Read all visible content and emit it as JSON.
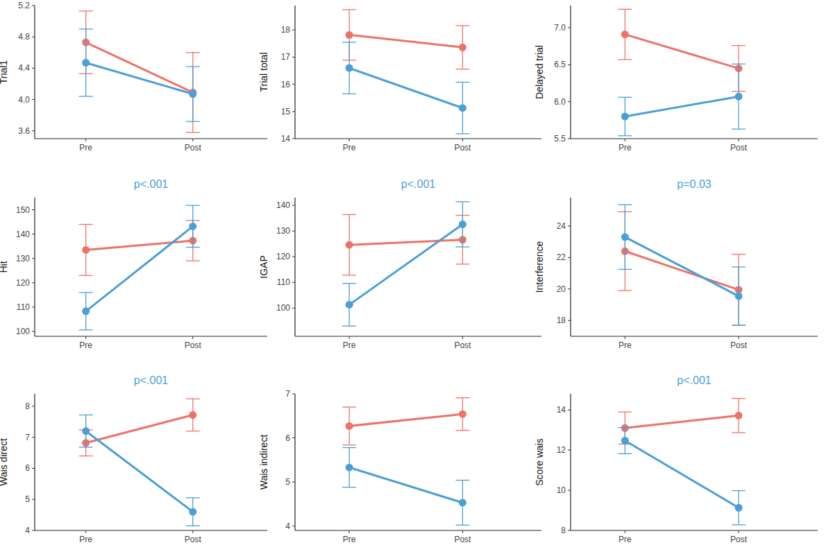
{
  "chart_data": [
    {
      "type": "line",
      "y_label": "Trial1",
      "categories": [
        "Pre",
        "Post"
      ],
      "ylim": [
        3.5,
        5.2
      ],
      "yticks": [
        {
          "value": 3.6,
          "label": "3.6"
        },
        {
          "value": 4.0,
          "label": "4.0"
        },
        {
          "value": 4.4,
          "label": "4.4"
        },
        {
          "value": 4.8,
          "label": "4.8"
        },
        {
          "value": 5.2,
          "label": "5.2"
        }
      ],
      "series": [
        {
          "color": "#ED7268",
          "values": [
            4.73,
            4.09
          ],
          "errors": [
            0.4,
            0.51
          ]
        },
        {
          "color": "#4A9FD7",
          "values": [
            4.47,
            4.07
          ],
          "errors": [
            0.43,
            0.35
          ]
        }
      ]
    },
    {
      "type": "line",
      "y_label": "Trial total",
      "categories": [
        "Pre",
        "Post"
      ],
      "ylim": [
        14,
        18.9
      ],
      "yticks": [
        14,
        15,
        16,
        17,
        18
      ],
      "series": [
        {
          "color": "#ED7268",
          "values": [
            17.82,
            17.36
          ],
          "errors": [
            0.93,
            0.8
          ]
        },
        {
          "color": "#4A9FD7",
          "values": [
            16.6,
            15.13
          ],
          "errors": [
            0.95,
            0.95
          ]
        }
      ]
    },
    {
      "type": "line",
      "y_label": "Delayed trial",
      "categories": [
        "Pre",
        "Post"
      ],
      "ylim": [
        5.5,
        7.3
      ],
      "yticks": [
        {
          "value": 5.5,
          "label": "5.5"
        },
        {
          "value": 6.0,
          "label": "6.0"
        },
        {
          "value": 6.5,
          "label": "6.5"
        },
        {
          "value": 7.0,
          "label": "7.0"
        }
      ],
      "series": [
        {
          "color": "#ED7268",
          "values": [
            6.91,
            6.45
          ],
          "errors": [
            0.34,
            0.31
          ]
        },
        {
          "color": "#4A9FD7",
          "values": [
            5.8,
            6.07
          ],
          "errors": [
            0.26,
            0.44
          ]
        }
      ]
    },
    {
      "type": "line",
      "y_label": "Hit",
      "annotation": "p<.001",
      "categories": [
        "Pre",
        "Post"
      ],
      "ylim": [
        98,
        155
      ],
      "yticks": [
        100,
        110,
        120,
        130,
        140,
        150
      ],
      "series": [
        {
          "color": "#ED7268",
          "values": [
            133.5,
            137.3
          ],
          "errors": [
            10.5,
            8.3
          ]
        },
        {
          "color": "#4A9FD7",
          "values": [
            108.3,
            143.2
          ],
          "errors": [
            7.7,
            8.6
          ]
        }
      ]
    },
    {
      "type": "line",
      "y_label": "IGAP",
      "annotation": "p<.001",
      "categories": [
        "Pre",
        "Post"
      ],
      "ylim": [
        89,
        143
      ],
      "yticks": [
        100,
        110,
        120,
        130,
        140
      ],
      "series": [
        {
          "color": "#ED7268",
          "values": [
            124.6,
            126.6
          ],
          "errors": [
            11.8,
            9.5
          ]
        },
        {
          "color": "#4A9FD7",
          "values": [
            101.3,
            132.6
          ],
          "errors": [
            8.3,
            8.8
          ]
        }
      ]
    },
    {
      "type": "line",
      "y_label": "Interference",
      "annotation": "p=0.03",
      "categories": [
        "Pre",
        "Post"
      ],
      "ylim": [
        17,
        25.8
      ],
      "yticks": [
        18,
        20,
        22,
        24
      ],
      "series": [
        {
          "color": "#ED7268",
          "values": [
            22.4,
            19.95
          ],
          "errors": [
            2.5,
            2.25
          ]
        },
        {
          "color": "#4A9FD7",
          "values": [
            23.3,
            19.55
          ],
          "errors": [
            2.05,
            1.85
          ]
        }
      ]
    },
    {
      "type": "line",
      "y_label": "Wais direct",
      "annotation": "p<.001",
      "categories": [
        "Pre",
        "Post"
      ],
      "ylim": [
        4,
        8.4
      ],
      "yticks": [
        4,
        5,
        6,
        7,
        8
      ],
      "series": [
        {
          "color": "#ED7268",
          "values": [
            6.82,
            7.72
          ],
          "errors": [
            0.42,
            0.52
          ]
        },
        {
          "color": "#4A9FD7",
          "values": [
            7.2,
            4.6
          ],
          "errors": [
            0.52,
            0.45
          ]
        }
      ]
    },
    {
      "type": "line",
      "y_label": "Wais indirect",
      "categories": [
        "Pre",
        "Post"
      ],
      "ylim": [
        3.9,
        7
      ],
      "yticks": [
        4,
        5,
        6,
        7
      ],
      "series": [
        {
          "color": "#ED7268",
          "values": [
            6.27,
            6.54
          ],
          "errors": [
            0.43,
            0.37
          ]
        },
        {
          "color": "#4A9FD7",
          "values": [
            5.33,
            4.53
          ],
          "errors": [
            0.45,
            0.51
          ]
        }
      ]
    },
    {
      "type": "line",
      "y_label": "Score wais",
      "annotation": "p<.001",
      "categories": [
        "Pre",
        "Post"
      ],
      "ylim": [
        8,
        14.8
      ],
      "yticks": [
        8,
        10,
        12,
        14
      ],
      "series": [
        {
          "color": "#ED7268",
          "values": [
            13.1,
            13.72
          ],
          "errors": [
            0.8,
            0.85
          ]
        },
        {
          "color": "#4A9FD7",
          "values": [
            12.47,
            9.13
          ],
          "errors": [
            0.65,
            0.85
          ]
        }
      ]
    }
  ]
}
